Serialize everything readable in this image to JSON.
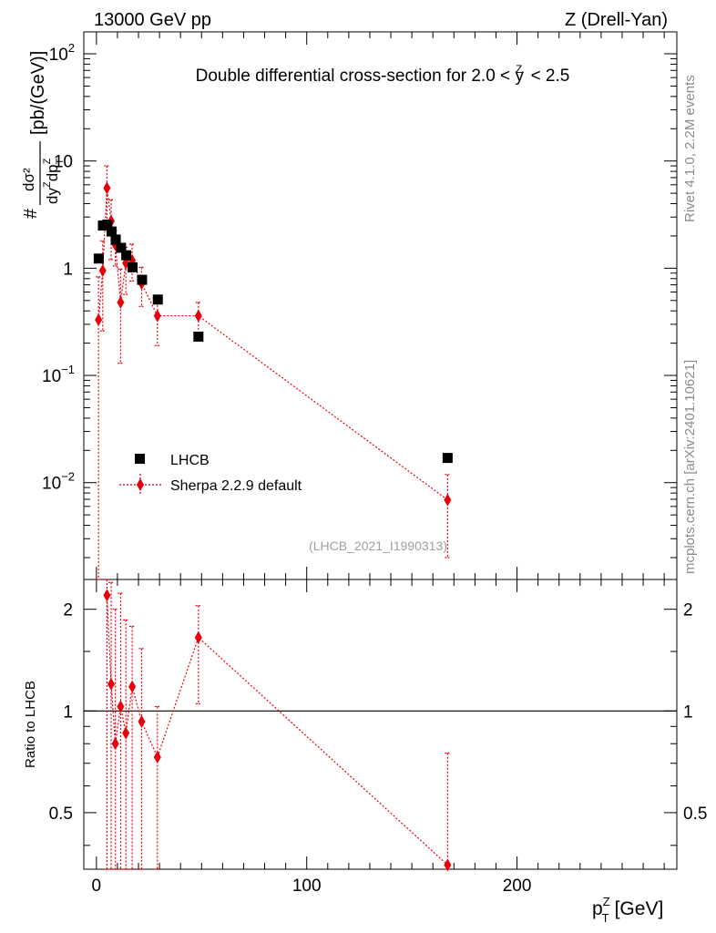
{
  "header": {
    "left": "13000 GeV pp",
    "right": "Z (Drell-Yan)",
    "plot_title_pre": "Double differential cross-section for 2.0 <",
    "plot_title_var": "y",
    "plot_title_var_sup": "Z",
    "plot_title_post": "< 2.5"
  },
  "side_text": {
    "rivet": "Rivet 4.1.0,  2.2M events",
    "mcplots": "mcplots.cern.ch [arXiv:2401.10621]"
  },
  "analysis_id": "(LHCB_2021_I1990313)",
  "axes": {
    "x_label_base": "p",
    "x_label_sup": "Z",
    "x_label_sub": "T",
    "x_label_unit": "[GeV]",
    "x_ticks": [
      "0",
      "100",
      "200"
    ],
    "ylabel_top": {
      "hash": "#",
      "num": "dσ²",
      "den_a": "dy",
      "den_sup1": "Z",
      "den_b": "dp",
      "den_sub": "T",
      "den_sup2": "Z",
      "unit": "[pb/(GeV)]"
    },
    "y_top_ticks": [
      {
        "base": "10",
        "exp": "2",
        "value": 100
      },
      {
        "base": "10",
        "exp": "",
        "value": 10
      },
      {
        "base": "1",
        "exp": "",
        "value": 1
      },
      {
        "base": "10",
        "exp": "−1",
        "value": 0.1
      },
      {
        "base": "10",
        "exp": "−2",
        "value": 0.01
      }
    ],
    "ylabel_bottom": "Ratio to LHCB",
    "y_bottom_ticks": [
      "2",
      "1",
      "0.5"
    ],
    "y_bottom_tick_values": [
      2,
      1,
      0.5
    ]
  },
  "legend": {
    "data_label": "LHCB",
    "mc_label": "Sherpa 2.2.9 default"
  },
  "colors": {
    "data": "#000000",
    "mc": "#e8000b",
    "side": "#8c8c8c"
  },
  "chart_data": [
    {
      "type": "scatter",
      "panel": "main",
      "title": "Double differential cross-section for 2.0 < y^Z < 2.5",
      "xlabel": "p_T^Z [GeV]",
      "ylabel": "d²σ/dy^Z dp_T^Z [pb/(GeV)]",
      "xlim": [
        -6,
        276
      ],
      "ylim": [
        0.00125,
        160
      ],
      "yscale": "log",
      "series": [
        {
          "name": "LHCB",
          "marker": "square",
          "x": [
            1.1,
            3.1,
            5.2,
            7.2,
            9.2,
            11.7,
            14.2,
            17.2,
            21.7,
            29.2,
            48.5,
            167.0
          ],
          "y": [
            1.23,
            2.5,
            2.55,
            2.2,
            1.85,
            1.55,
            1.32,
            1.02,
            0.78,
            0.51,
            0.23,
            0.017
          ]
        },
        {
          "name": "Sherpa 2.2.9 default",
          "marker": "diamond",
          "line": "dotted",
          "x": [
            1.0,
            3.0,
            5.0,
            7.0,
            9.0,
            11.5,
            14.0,
            17.0,
            21.5,
            29.0,
            48.5,
            167.0
          ],
          "y": [
            0.33,
            0.95,
            5.6,
            2.75,
            1.65,
            0.48,
            1.12,
            1.18,
            0.72,
            0.36,
            0.36,
            0.0069
          ],
          "yerr_low": [
            0.33,
            0.69,
            3.0,
            1.55,
            0.6,
            0.35,
            0.55,
            0.42,
            0.28,
            0.17,
            0.13,
            0.0049
          ],
          "yerr_high": [
            0.5,
            0.85,
            3.4,
            1.6,
            0.6,
            0.5,
            0.45,
            0.5,
            0.3,
            0.17,
            0.12,
            0.005
          ]
        }
      ]
    },
    {
      "type": "scatter",
      "panel": "ratio",
      "ylabel": "Ratio to LHCB",
      "xlim": [
        -6,
        276
      ],
      "ylim": [
        0.34,
        2.45
      ],
      "yscale": "log",
      "reference_line": 1,
      "series": [
        {
          "name": "Sherpa 2.2.9 default",
          "marker": "diamond",
          "line": "dotted",
          "x": [
            5.0,
            7.0,
            9.0,
            11.5,
            14.0,
            17.0,
            21.5,
            29.0,
            48.5,
            167.0
          ],
          "y": [
            2.2,
            1.2,
            0.8,
            1.03,
            0.86,
            1.18,
            0.93,
            0.73,
            1.65,
            0.35
          ],
          "yerr_low": [
            1.9,
            1.0,
            0.7,
            0.8,
            0.6,
            0.9,
            0.6,
            0.4,
            0.6,
            0.25
          ],
          "yerr_high": [
            0.25,
            1.2,
            1.2,
            1.2,
            1.0,
            0.6,
            0.6,
            0.3,
            0.4,
            0.4
          ]
        }
      ]
    }
  ]
}
